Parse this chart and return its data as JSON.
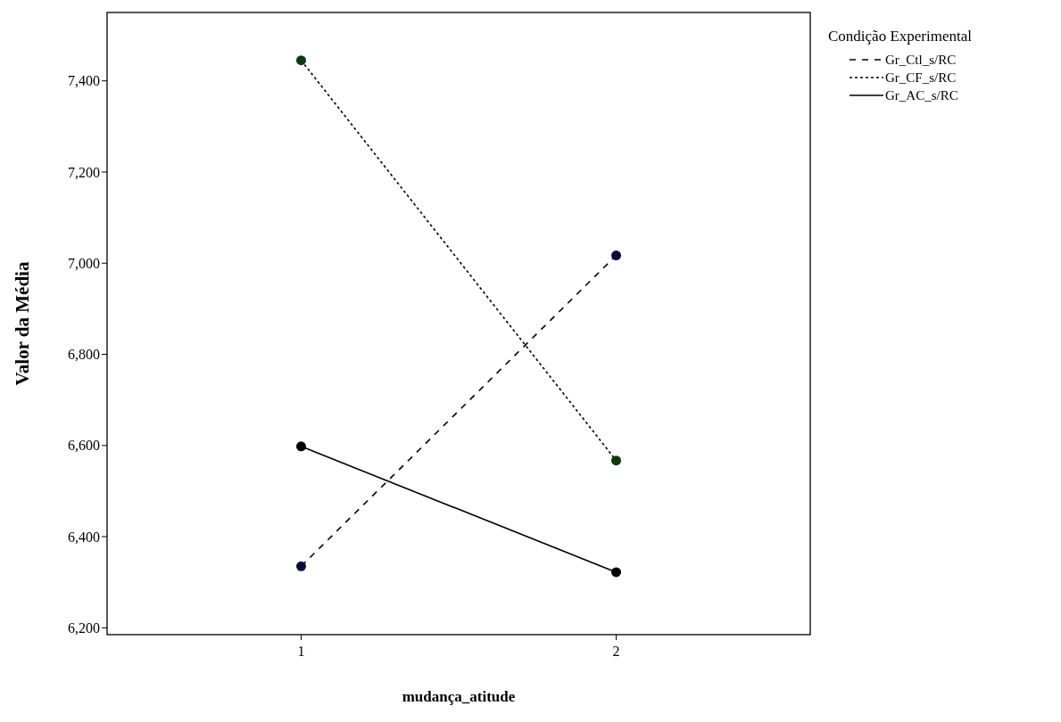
{
  "chart_data": {
    "type": "line",
    "xlabel": "mudança_atitude",
    "ylabel": "Valor da Média",
    "legend_title": "Condição Experimental",
    "categories": [
      "1",
      "2"
    ],
    "series": [
      {
        "name": "Gr_Ctl_s/RC",
        "color": "#000000",
        "colors": [
          "#0a0a3a",
          "#0a0a3a"
        ],
        "line_style": "dashed",
        "values": [
          6335,
          7017
        ]
      },
      {
        "name": "Gr_CF_s/RC",
        "color": "#000000",
        "colors": [
          "#0b3b0b",
          "#0b3b0b"
        ],
        "line_style": "dotted",
        "values": [
          7445,
          6567
        ]
      },
      {
        "name": "Gr_AC_s/RC",
        "color": "#000000",
        "colors": [
          "#000000",
          "#000000"
        ],
        "line_style": "solid",
        "values": [
          6598,
          6322
        ]
      }
    ],
    "ylim": [
      6185,
      7550
    ],
    "yticks": [
      {
        "value": 6200,
        "label": "6,200"
      },
      {
        "value": 6400,
        "label": "6,400"
      },
      {
        "value": 6600,
        "label": "6,600"
      },
      {
        "value": 6800,
        "label": "6,800"
      },
      {
        "value": 7000,
        "label": "7,000"
      },
      {
        "value": 7200,
        "label": "7,200"
      },
      {
        "value": 7400,
        "label": "7,400"
      }
    ],
    "grid": false,
    "legend": "right",
    "marker": "circle"
  }
}
